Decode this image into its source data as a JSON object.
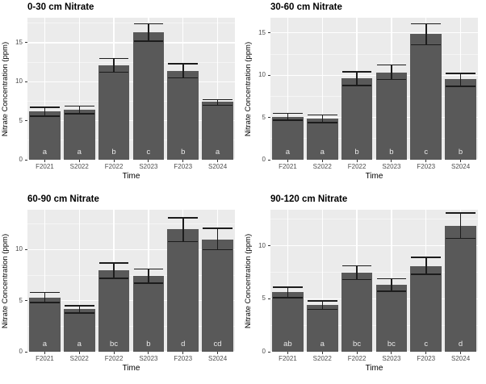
{
  "colors": {
    "figure_background": "#ffffff",
    "panel_background": "#ebebeb",
    "grid_major": "#ffffff",
    "grid_minor": "#f5f5f5",
    "bar_fill": "#595959",
    "error_bar": "#1c1c1c",
    "axis_text": "#4d4d4d",
    "title_text": "#000000",
    "bar_label_text": "#e8e8e8",
    "tick_mark": "#333333"
  },
  "chart_data": [
    {
      "type": "bar",
      "title": "0-30 cm Nitrate",
      "xlabel": "Time",
      "ylabel": "Nitrate Concentration (ppm)",
      "categories": [
        "F2021",
        "S2022",
        "F2022",
        "S2023",
        "F2023",
        "S2024"
      ],
      "values": [
        6.2,
        6.4,
        12.1,
        16.3,
        11.4,
        7.4
      ],
      "error_low": [
        5.6,
        5.9,
        11.2,
        15.2,
        10.5,
        7.0
      ],
      "error_high": [
        6.7,
        6.9,
        13.0,
        17.4,
        12.3,
        7.7
      ],
      "bar_letters": [
        "a",
        "a",
        "b",
        "c",
        "b",
        "a"
      ],
      "yticks": [
        0,
        5,
        10,
        15
      ],
      "ylim": [
        0,
        18.2
      ],
      "grid": true,
      "legend": "none"
    },
    {
      "type": "bar",
      "title": "30-60 cm Nitrate",
      "xlabel": "Time",
      "ylabel": "Nitrate Concentration (ppm)",
      "categories": [
        "F2021",
        "S2022",
        "F2022",
        "S2023",
        "F2023",
        "S2024"
      ],
      "values": [
        5.1,
        4.9,
        9.6,
        10.3,
        14.9,
        9.5
      ],
      "error_low": [
        4.7,
        4.4,
        8.8,
        9.5,
        13.6,
        8.7
      ],
      "error_high": [
        5.5,
        5.3,
        10.4,
        11.2,
        16.1,
        10.2
      ],
      "bar_letters": [
        "a",
        "a",
        "b",
        "b",
        "c",
        "b"
      ],
      "yticks": [
        0,
        5,
        10,
        15
      ],
      "ylim": [
        0,
        16.8
      ],
      "grid": true,
      "legend": "none"
    },
    {
      "type": "bar",
      "title": "60-90 cm Nitrate",
      "xlabel": "Time",
      "ylabel": "Nitrate Concentration (ppm)",
      "categories": [
        "F2021",
        "S2022",
        "F2022",
        "S2023",
        "F2023",
        "S2024"
      ],
      "values": [
        5.3,
        4.2,
        8.0,
        7.4,
        12.0,
        11.0
      ],
      "error_low": [
        4.8,
        3.8,
        7.2,
        6.7,
        10.8,
        10.0
      ],
      "error_high": [
        5.8,
        4.5,
        8.7,
        8.1,
        13.1,
        12.1
      ],
      "bar_letters": [
        "a",
        "a",
        "bc",
        "b",
        "d",
        "cd"
      ],
      "yticks": [
        0,
        5,
        10
      ],
      "ylim": [
        0,
        13.9
      ],
      "grid": true,
      "legend": "none"
    },
    {
      "type": "bar",
      "title": "90-120 cm Nitrate",
      "xlabel": "Time",
      "ylabel": "Nitrate Concentration (ppm)",
      "categories": [
        "F2021",
        "S2022",
        "F2022",
        "S2023",
        "F2023",
        "S2024"
      ],
      "values": [
        5.6,
        4.4,
        7.5,
        6.3,
        8.1,
        11.9
      ],
      "error_low": [
        5.1,
        4.0,
        6.8,
        5.7,
        7.3,
        10.7
      ],
      "error_high": [
        6.1,
        4.8,
        8.1,
        6.9,
        8.9,
        13.1
      ],
      "bar_letters": [
        "ab",
        "a",
        "bc",
        "bc",
        "c",
        "d"
      ],
      "yticks": [
        0,
        5,
        10
      ],
      "ylim": [
        0,
        13.4
      ],
      "grid": true,
      "legend": "none"
    }
  ]
}
